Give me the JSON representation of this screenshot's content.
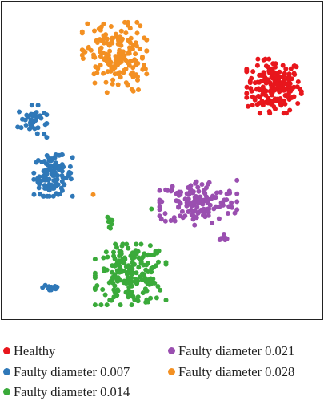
{
  "chart_data": {
    "type": "scatter",
    "title": "",
    "xlabel": "",
    "ylabel": "",
    "grid": false,
    "axes_ticks": false,
    "legend_position": "bottom",
    "xlim": [
      0,
      100
    ],
    "ylim": [
      0,
      100
    ],
    "series": [
      {
        "name": "Healthy",
        "color": "#e8161c",
        "clusters": [
          {
            "cx": 84.5,
            "cy": 73.5,
            "rx": 8.5,
            "ry": 8.5,
            "n": 190
          }
        ]
      },
      {
        "name": "Faulty diameter 0.007",
        "color": "#2f78b8",
        "clusters": [
          {
            "cx": 9.5,
            "cy": 62.5,
            "rx": 4.5,
            "ry": 5.0,
            "n": 40
          },
          {
            "cx": 16.0,
            "cy": 45.5,
            "rx": 6.0,
            "ry": 6.5,
            "n": 110
          },
          {
            "cx": 15.5,
            "cy": 10.5,
            "rx": 2.8,
            "ry": 1.5,
            "n": 18
          }
        ]
      },
      {
        "name": "Faulty diameter 0.014",
        "color": "#3aaa3a",
        "clusters": [
          {
            "cx": 40.0,
            "cy": 14.5,
            "rx": 11.0,
            "ry": 9.5,
            "n": 200
          },
          {
            "cx": 33.5,
            "cy": 31.0,
            "rx": 0.8,
            "ry": 2.0,
            "n": 10
          },
          {
            "cx": 46.5,
            "cy": 35.0,
            "rx": 0.2,
            "ry": 0.2,
            "n": 1
          }
        ]
      },
      {
        "name": "Faulty diameter 0.021",
        "color": "#9a4fb0",
        "clusters": [
          {
            "cx": 61.0,
            "cy": 37.0,
            "rx": 12.0,
            "ry": 7.0,
            "n": 150
          },
          {
            "cx": 69.0,
            "cy": 26.5,
            "rx": 1.8,
            "ry": 1.2,
            "n": 8
          }
        ]
      },
      {
        "name": "Faulty diameter 0.028",
        "color": "#f39022",
        "clusters": [
          {
            "cx": 35.0,
            "cy": 82.5,
            "rx": 10.0,
            "ry": 11.0,
            "n": 170
          },
          {
            "cx": 28.5,
            "cy": 39.5,
            "rx": 0.2,
            "ry": 0.2,
            "n": 1
          }
        ]
      }
    ]
  },
  "legend": [
    {
      "label": "Healthy",
      "color": "#e8161c"
    },
    {
      "label": "Faulty diameter 0.007",
      "color": "#2f78b8"
    },
    {
      "label": "Faulty diameter 0.014",
      "color": "#3aaa3a"
    },
    {
      "label": "Faulty diameter 0.021",
      "color": "#9a4fb0"
    },
    {
      "label": "Faulty diameter 0.028",
      "color": "#f39022"
    }
  ]
}
